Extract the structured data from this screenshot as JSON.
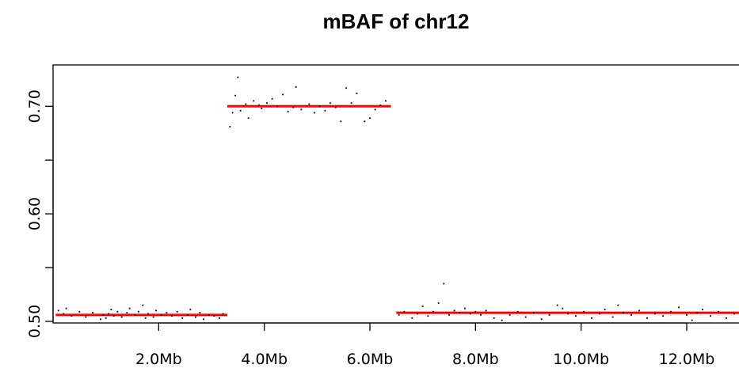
{
  "chart_data": {
    "type": "scatter",
    "title": "mBAF of chr12",
    "xlabel": "",
    "ylabel": "",
    "xlim": [
      0,
      13.2
    ],
    "ylim": [
      0.4985,
      0.7385
    ],
    "x_unit": "Mb",
    "x_ticks": [
      {
        "value": 2.0,
        "label": "2.0Mb"
      },
      {
        "value": 4.0,
        "label": "4.0Mb"
      },
      {
        "value": 6.0,
        "label": "6.0Mb"
      },
      {
        "value": 8.0,
        "label": "8.0Mb"
      },
      {
        "value": 10.0,
        "label": "10.0Mb"
      },
      {
        "value": 12.0,
        "label": "12.0Mb"
      }
    ],
    "y_ticks": [
      {
        "value": 0.5,
        "label": "0.50"
      },
      {
        "value": 0.55,
        "label": ""
      },
      {
        "value": 0.6,
        "label": "0.60"
      },
      {
        "value": 0.65,
        "label": ""
      },
      {
        "value": 0.7,
        "label": "0.70"
      }
    ],
    "grid": false,
    "segments": [
      {
        "x_start": 0.05,
        "x_end": 3.3,
        "y": 0.506,
        "color": "#ff0000"
      },
      {
        "x_start": 3.3,
        "x_end": 6.4,
        "y": 0.7,
        "color": "#ff0000"
      },
      {
        "x_start": 6.5,
        "x_end": 13.2,
        "y": 0.508,
        "color": "#ff0000"
      }
    ],
    "point_color": "#000000",
    "points": [
      [
        0.1,
        0.51
      ],
      [
        0.2,
        0.507
      ],
      [
        0.25,
        0.512
      ],
      [
        0.35,
        0.505
      ],
      [
        0.5,
        0.509
      ],
      [
        0.62,
        0.504
      ],
      [
        0.75,
        0.508
      ],
      [
        0.9,
        0.502
      ],
      [
        0.95,
        0.506
      ],
      [
        1.0,
        0.503
      ],
      [
        1.05,
        0.507
      ],
      [
        1.1,
        0.511
      ],
      [
        1.15,
        0.505
      ],
      [
        1.22,
        0.509
      ],
      [
        1.3,
        0.504
      ],
      [
        1.4,
        0.508
      ],
      [
        1.45,
        0.512
      ],
      [
        1.55,
        0.506
      ],
      [
        1.62,
        0.509
      ],
      [
        1.7,
        0.515
      ],
      [
        1.75,
        0.503
      ],
      [
        1.8,
        0.507
      ],
      [
        1.9,
        0.504
      ],
      [
        1.95,
        0.51
      ],
      [
        2.05,
        0.506
      ],
      [
        2.15,
        0.508
      ],
      [
        2.25,
        0.505
      ],
      [
        2.35,
        0.509
      ],
      [
        2.45,
        0.503
      ],
      [
        2.55,
        0.506
      ],
      [
        2.6,
        0.511
      ],
      [
        2.7,
        0.504
      ],
      [
        2.78,
        0.508
      ],
      [
        2.85,
        0.502
      ],
      [
        2.95,
        0.506
      ],
      [
        3.05,
        0.505
      ],
      [
        3.15,
        0.503
      ],
      [
        3.22,
        0.507
      ],
      [
        3.35,
        0.681
      ],
      [
        3.4,
        0.694
      ],
      [
        3.45,
        0.71
      ],
      [
        3.5,
        0.727
      ],
      [
        3.55,
        0.696
      ],
      [
        3.65,
        0.702
      ],
      [
        3.7,
        0.689
      ],
      [
        3.8,
        0.705
      ],
      [
        3.9,
        0.701
      ],
      [
        3.95,
        0.698
      ],
      [
        4.05,
        0.703
      ],
      [
        4.15,
        0.707
      ],
      [
        4.25,
        0.7
      ],
      [
        4.35,
        0.711
      ],
      [
        4.45,
        0.695
      ],
      [
        4.55,
        0.699
      ],
      [
        4.6,
        0.718
      ],
      [
        4.7,
        0.697
      ],
      [
        4.85,
        0.702
      ],
      [
        4.95,
        0.694
      ],
      [
        5.05,
        0.7
      ],
      [
        5.15,
        0.696
      ],
      [
        5.25,
        0.703
      ],
      [
        5.35,
        0.699
      ],
      [
        5.45,
        0.686
      ],
      [
        5.55,
        0.717
      ],
      [
        5.65,
        0.703
      ],
      [
        5.75,
        0.712
      ],
      [
        5.9,
        0.686
      ],
      [
        6.0,
        0.689
      ],
      [
        6.1,
        0.697
      ],
      [
        6.2,
        0.701
      ],
      [
        6.3,
        0.705
      ],
      [
        6.55,
        0.506
      ],
      [
        6.65,
        0.509
      ],
      [
        6.8,
        0.503
      ],
      [
        6.9,
        0.507
      ],
      [
        7.0,
        0.514
      ],
      [
        7.1,
        0.505
      ],
      [
        7.2,
        0.509
      ],
      [
        7.3,
        0.517
      ],
      [
        7.4,
        0.535
      ],
      [
        7.5,
        0.506
      ],
      [
        7.6,
        0.51
      ],
      [
        7.7,
        0.508
      ],
      [
        7.8,
        0.512
      ],
      [
        7.9,
        0.507
      ],
      [
        8.0,
        0.509
      ],
      [
        8.1,
        0.506
      ],
      [
        8.2,
        0.51
      ],
      [
        8.35,
        0.503
      ],
      [
        8.5,
        0.501
      ],
      [
        8.65,
        0.506
      ],
      [
        8.8,
        0.509
      ],
      [
        8.95,
        0.504
      ],
      [
        9.1,
        0.508
      ],
      [
        9.25,
        0.502
      ],
      [
        9.4,
        0.506
      ],
      [
        9.55,
        0.515
      ],
      [
        9.65,
        0.512
      ],
      [
        9.75,
        0.507
      ],
      [
        9.9,
        0.505
      ],
      [
        10.05,
        0.509
      ],
      [
        10.2,
        0.503
      ],
      [
        10.35,
        0.507
      ],
      [
        10.45,
        0.511
      ],
      [
        10.6,
        0.504
      ],
      [
        10.7,
        0.515
      ],
      [
        10.8,
        0.508
      ],
      [
        10.95,
        0.506
      ],
      [
        11.1,
        0.51
      ],
      [
        11.25,
        0.503
      ],
      [
        11.4,
        0.507
      ],
      [
        11.55,
        0.505
      ],
      [
        11.7,
        0.509
      ],
      [
        11.85,
        0.513
      ],
      [
        12.0,
        0.506
      ],
      [
        12.1,
        0.501
      ],
      [
        12.2,
        0.508
      ],
      [
        12.3,
        0.511
      ],
      [
        12.45,
        0.505
      ],
      [
        12.6,
        0.509
      ],
      [
        12.75,
        0.503
      ],
      [
        12.9,
        0.507
      ],
      [
        13.05,
        0.506
      ]
    ]
  }
}
